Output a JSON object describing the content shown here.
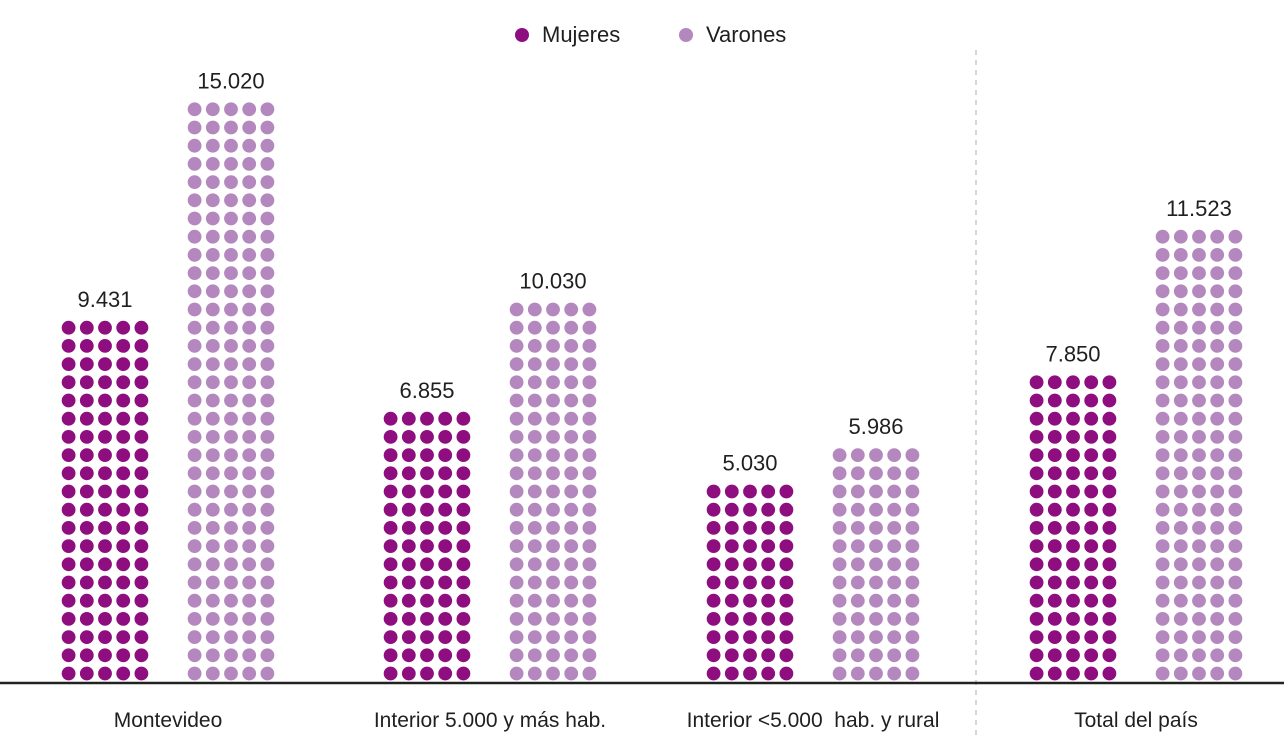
{
  "chart_data": {
    "type": "bar",
    "style": "dot-pictogram",
    "categories": [
      "Montevideo",
      "Interior 5.000 y más hab.",
      "Interior <5.000  hab. y rural",
      "Total del país"
    ],
    "series": [
      {
        "name": "Mujeres",
        "color": "#8e0d7f",
        "values": [
          9431,
          6855,
          5030,
          7850
        ],
        "value_labels": [
          "9.431",
          "6.855",
          "5.030",
          "7.850"
        ]
      },
      {
        "name": "Varones",
        "color": "#b488bf",
        "values": [
          15020,
          10030,
          5986,
          11523
        ],
        "value_labels": [
          "15.020",
          "10.030",
          "5.986",
          "11.523"
        ]
      }
    ],
    "legend_position": "top-center",
    "grid": false,
    "separator_before_last_category": true
  }
}
